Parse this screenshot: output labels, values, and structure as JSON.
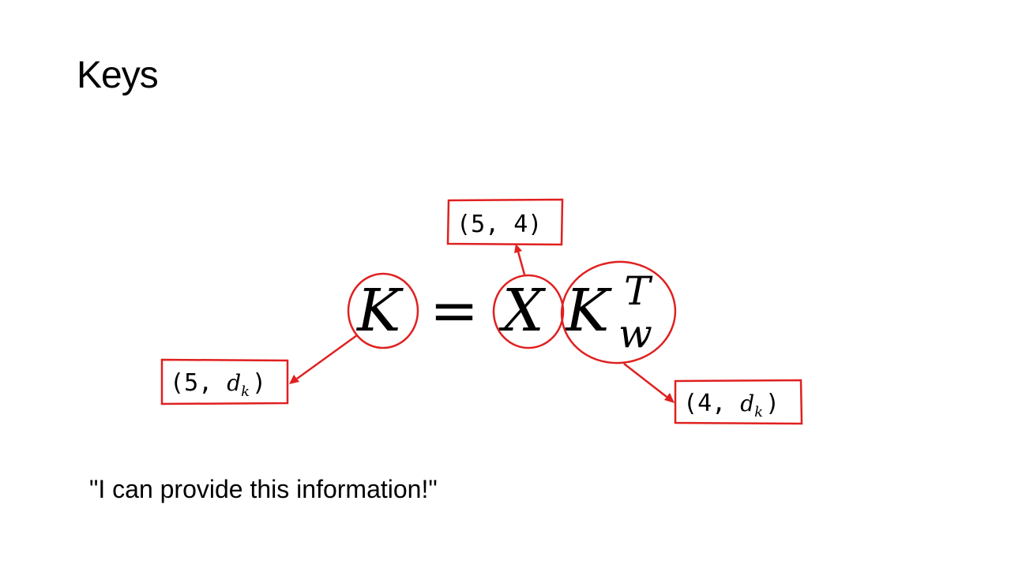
{
  "slide": {
    "title": "Keys",
    "quote": "\"I can provide this information!\""
  },
  "equation": {
    "lhs": "K",
    "equals": "=",
    "x": "X",
    "k": "K",
    "sup": "T",
    "sub": "w"
  },
  "labels": {
    "x_shape": {
      "open": "(",
      "first": "5",
      "sep": ",",
      "second": "4",
      "close": ")"
    },
    "k_shape": {
      "open": "(",
      "first": "5",
      "sep": ",",
      "var": "d",
      "sub": "k",
      "close": ")"
    },
    "kw_shape": {
      "open": "(",
      "first": "4",
      "sep": ",",
      "var": "d",
      "sub": "k",
      "close": ")"
    }
  },
  "colors": {
    "annotation": "#e02020",
    "text": "#000000"
  }
}
